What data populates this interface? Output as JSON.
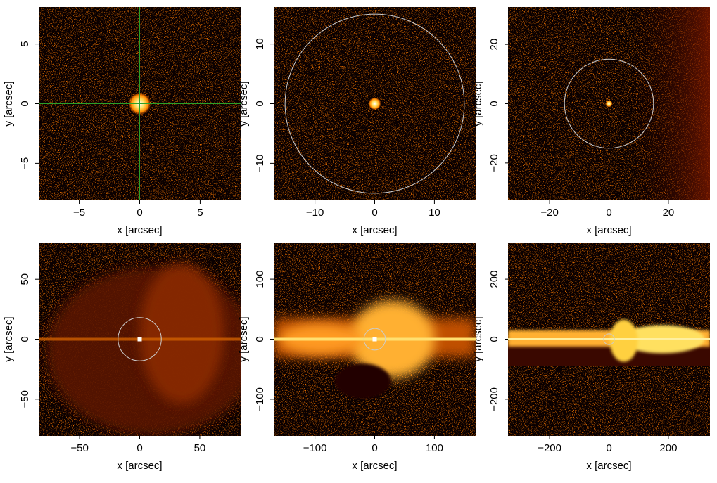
{
  "chart_data": [
    {
      "type": "image",
      "xlabel": "x [arcsec]",
      "ylabel": "y [arcsec]",
      "xlim": [
        -8.35,
        8.35
      ],
      "ylim": [
        -8.1,
        8.1
      ],
      "xticks": [
        {
          "value": -5,
          "label": "−5"
        },
        0,
        5
      ],
      "yticks": [
        {
          "value": -5,
          "label": "−5"
        },
        0,
        5
      ],
      "crosshair": [
        0,
        0
      ]
    },
    {
      "type": "image",
      "xlabel": "x [arcsec]",
      "ylabel": "y [arcsec]",
      "xlim": [
        -16.9,
        16.9
      ],
      "ylim": [
        -16.2,
        16.2
      ],
      "xticks": [
        {
          "value": -10,
          "label": "−10"
        },
        0,
        10
      ],
      "yticks": [
        {
          "value": -10,
          "label": "−10"
        },
        0,
        10
      ],
      "circle_radius": 15
    },
    {
      "type": "image",
      "xlabel": "x [arcsec]",
      "ylabel": "y [arcsec]",
      "xlim": [
        -34,
        34
      ],
      "ylim": [
        -32.6,
        32.6
      ],
      "xticks": [
        {
          "value": -20,
          "label": "−20"
        },
        0,
        20
      ],
      "yticks": [
        {
          "value": -20,
          "label": "−20"
        },
        0,
        20
      ],
      "circle_radius": 15
    },
    {
      "type": "image",
      "xlabel": "x [arcsec]",
      "ylabel": "y [arcsec]",
      "xlim": [
        -84,
        84
      ],
      "ylim": [
        -80.6,
        80.6
      ],
      "xticks": [
        {
          "value": -50,
          "label": "−50"
        },
        0,
        50
      ],
      "yticks": [
        {
          "value": -50,
          "label": "−50"
        },
        0,
        50
      ],
      "circle_radius": 18
    },
    {
      "type": "image",
      "xlabel": "x [arcsec]",
      "ylabel": "y [arcsec]",
      "xlim": [
        -169,
        169
      ],
      "ylim": [
        -161,
        161
      ],
      "xticks": [
        {
          "value": -100,
          "label": "−100"
        },
        0,
        100
      ],
      "yticks": [
        {
          "value": -100,
          "label": "−100"
        },
        0,
        100
      ],
      "circle_radius": 18
    },
    {
      "type": "image",
      "xlabel": "x [arcsec]",
      "ylabel": "y [arcsec]",
      "xlim": [
        -340,
        340
      ],
      "ylim": [
        -322,
        322
      ],
      "xticks": [
        {
          "value": -200,
          "label": "−200"
        },
        0,
        200
      ],
      "yticks": [
        {
          "value": -200,
          "label": "−200"
        },
        0,
        200
      ],
      "circle_radius": 18
    }
  ]
}
